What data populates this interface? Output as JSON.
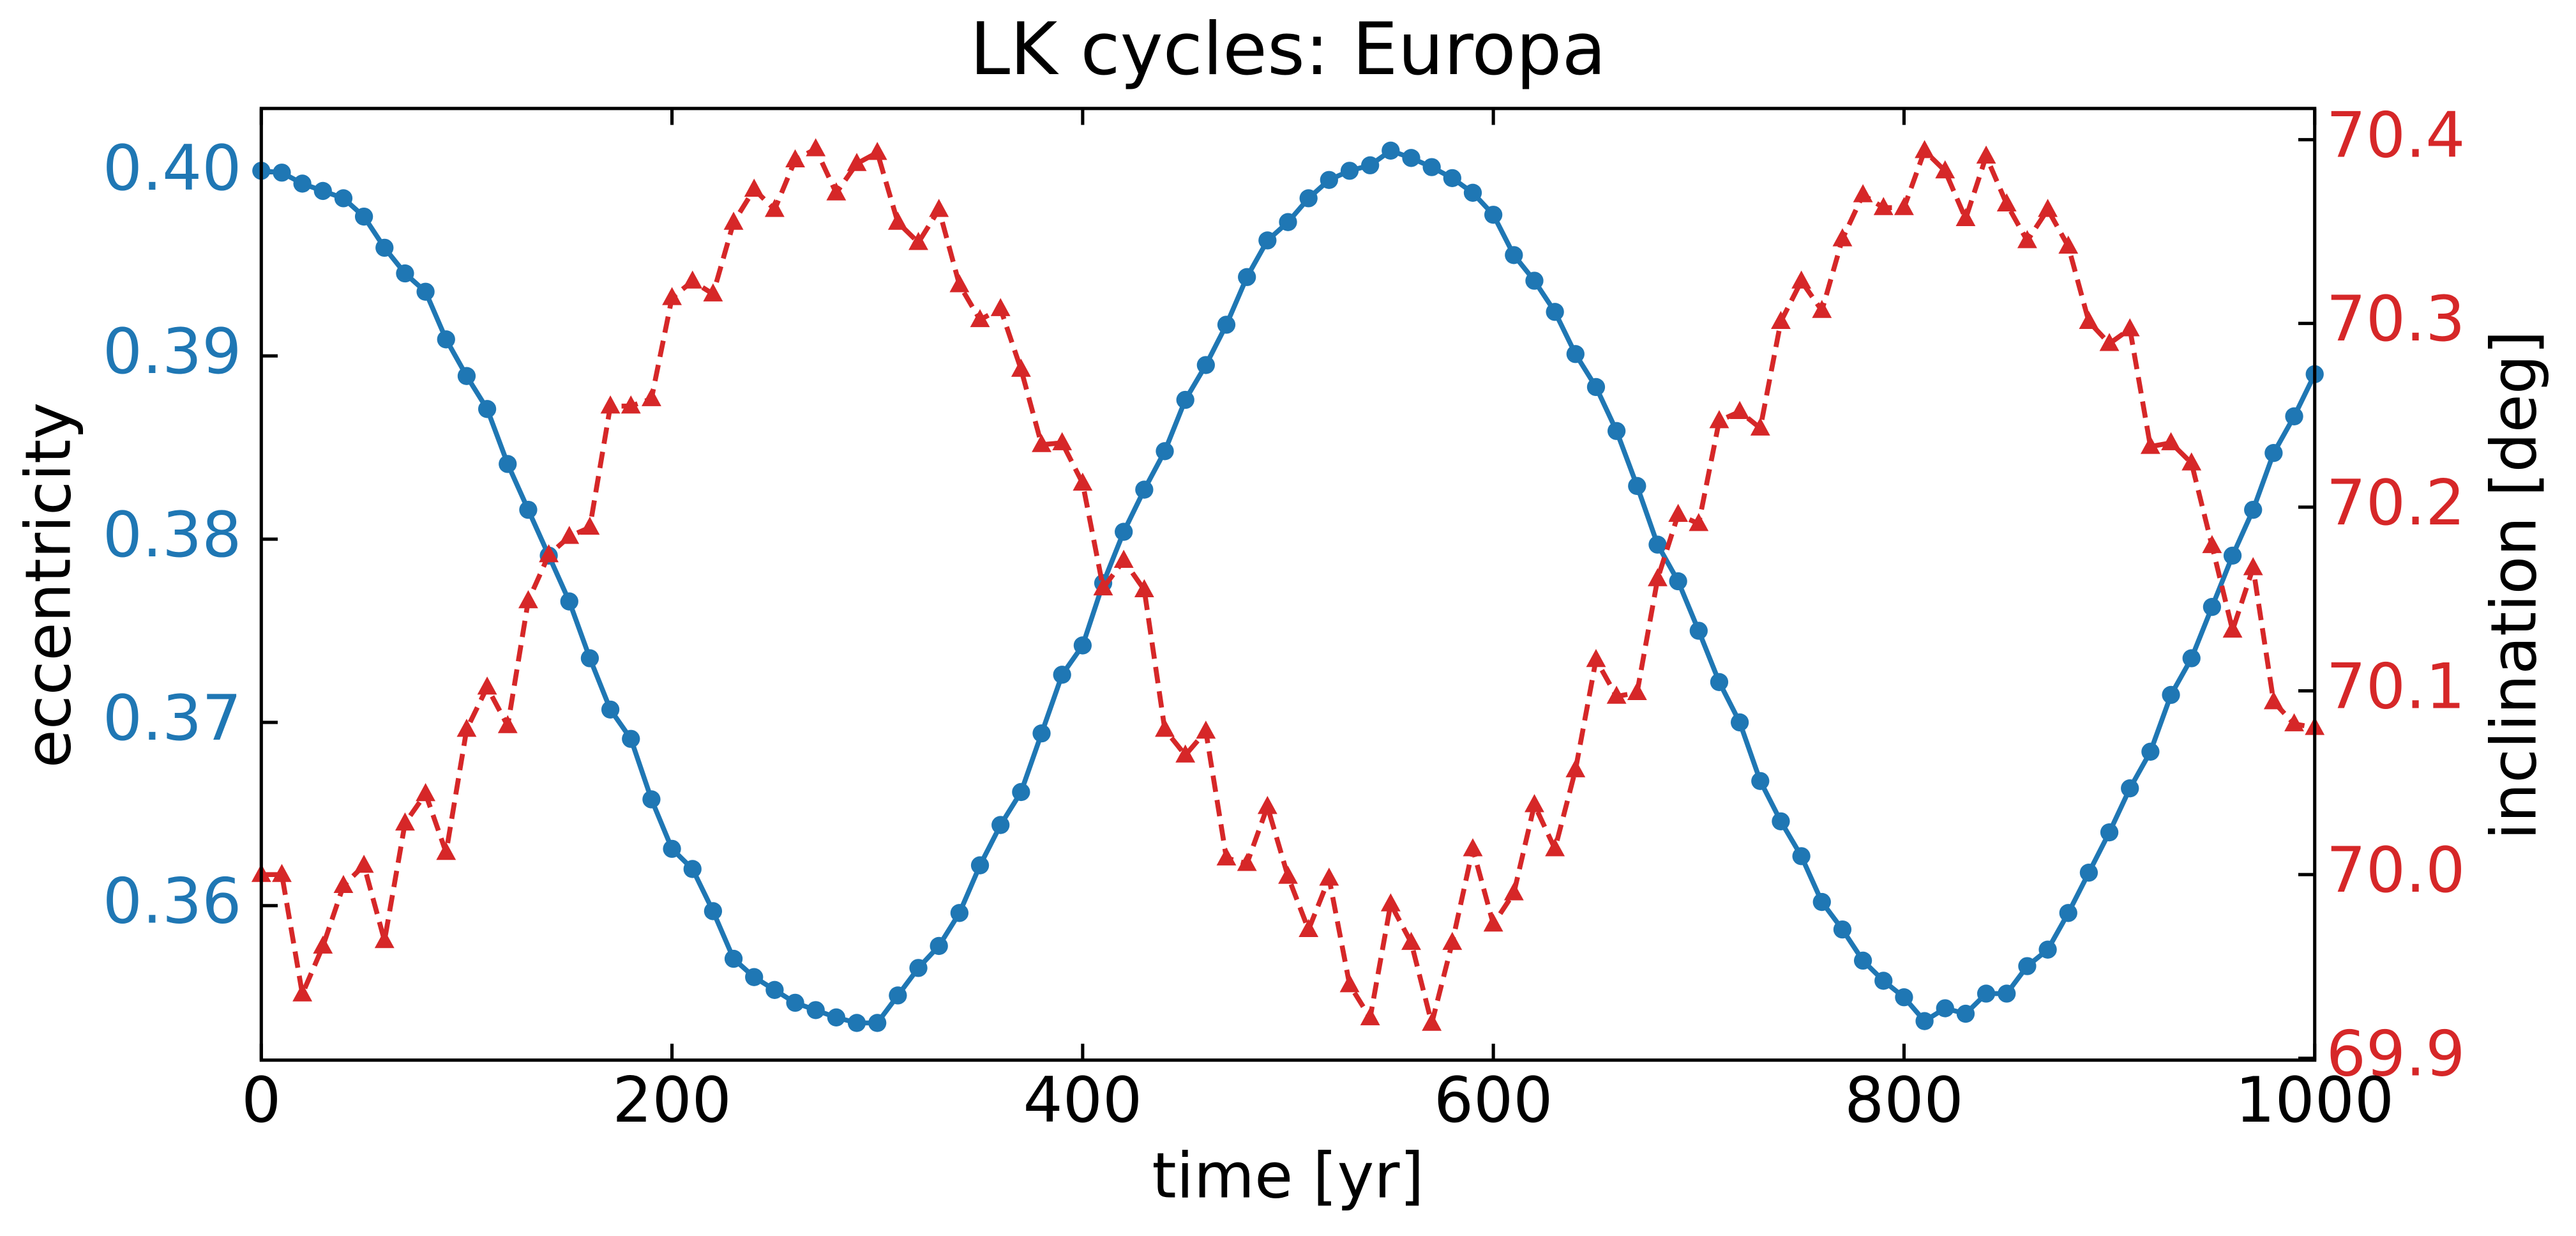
{
  "chart_data": {
    "type": "line",
    "title": "LK cycles: Europa",
    "xlabel": "time [yr]",
    "ylabel": "eccentricity",
    "y2label": "inclination [deg]",
    "x": [
      0,
      10,
      20,
      30,
      40,
      50,
      60,
      70,
      80,
      90,
      100,
      110,
      120,
      130,
      140,
      150,
      160,
      170,
      180,
      190,
      200,
      210,
      220,
      230,
      240,
      250,
      260,
      270,
      280,
      290,
      300,
      310,
      320,
      330,
      340,
      350,
      360,
      370,
      380,
      390,
      400,
      410,
      420,
      430,
      440,
      450,
      460,
      470,
      480,
      490,
      500,
      510,
      520,
      530,
      540,
      550,
      560,
      570,
      580,
      590,
      600,
      610,
      620,
      630,
      640,
      650,
      660,
      670,
      680,
      690,
      700,
      710,
      720,
      730,
      740,
      750,
      760,
      770,
      780,
      790,
      800,
      810,
      820,
      830,
      840,
      850,
      860,
      870,
      880,
      890,
      900,
      910,
      920,
      930,
      940,
      950,
      960,
      970,
      980,
      990,
      1000
    ],
    "series": [
      {
        "color": "#1f77b4",
        "axis": "y",
        "values": [
          0.4001,
          0.4,
          0.3994,
          0.399,
          0.3986,
          0.3976,
          0.3959,
          0.3945,
          0.3935,
          0.3909,
          0.3889,
          0.3871,
          0.3841,
          0.3816,
          0.3791,
          0.3766,
          0.3735,
          0.3707,
          0.3691,
          0.3658,
          0.3631,
          0.362,
          0.3597,
          0.3571,
          0.3561,
          0.3554,
          0.3547,
          0.3543,
          0.3539,
          0.3536,
          0.3536,
          0.3551,
          0.3566,
          0.3578,
          0.3596,
          0.3622,
          0.3644,
          0.3662,
          0.3694,
          0.3726,
          0.3742,
          0.3776,
          0.3804,
          0.3827,
          0.3848,
          0.3876,
          0.3895,
          0.3917,
          0.3943,
          0.3963,
          0.3973,
          0.3986,
          0.3996,
          0.4001,
          0.4004,
          0.4012,
          0.4008,
          0.4003,
          0.3997,
          0.3989,
          0.3977,
          0.3955,
          0.3941,
          0.3924,
          0.3901,
          0.3883,
          0.3859,
          0.3829,
          0.3797,
          0.3777,
          0.375,
          0.3722,
          0.37,
          0.3668,
          0.3646,
          0.3627,
          0.3602,
          0.3587,
          0.357,
          0.3559,
          0.355,
          0.3537,
          0.3544,
          0.3541,
          0.3552,
          0.3552,
          0.3567,
          0.3576,
          0.3596,
          0.3618,
          0.364,
          0.3664,
          0.3684,
          0.3715,
          0.3735,
          0.3763,
          0.3791,
          0.3816,
          0.3847,
          0.3867,
          0.389
        ]
      },
      {
        "color": "#d62728",
        "axis": "y2",
        "values": [
          70.0,
          70.0,
          69.935,
          69.961,
          69.994,
          70.005,
          69.964,
          70.028,
          70.044,
          70.012,
          70.079,
          70.102,
          70.081,
          70.149,
          70.174,
          70.184,
          70.189,
          70.255,
          70.255,
          70.259,
          70.314,
          70.323,
          70.316,
          70.355,
          70.373,
          70.362,
          70.389,
          70.395,
          70.371,
          70.387,
          70.393,
          70.355,
          70.344,
          70.362,
          70.321,
          70.302,
          70.308,
          70.275,
          70.234,
          70.235,
          70.213,
          70.156,
          70.171,
          70.155,
          70.079,
          70.065,
          70.078,
          70.009,
          70.006,
          70.037,
          69.999,
          69.97,
          69.998,
          69.94,
          69.922,
          69.984,
          69.963,
          69.919,
          69.963,
          70.014,
          69.973,
          69.99,
          70.038,
          70.014,
          70.057,
          70.117,
          70.097,
          70.099,
          70.161,
          70.196,
          70.191,
          70.247,
          70.252,
          70.243,
          70.301,
          70.323,
          70.307,
          70.346,
          70.37,
          70.363,
          70.363,
          70.394,
          70.383,
          70.357,
          70.391,
          70.365,
          70.345,
          70.362,
          70.342,
          70.301,
          70.289,
          70.297,
          70.233,
          70.235,
          70.224,
          70.179,
          70.133,
          70.167,
          70.094,
          70.082,
          70.08
        ]
      }
    ],
    "xlim": [
      0,
      1000
    ],
    "xticks": [
      0,
      200,
      400,
      600,
      800,
      1000
    ],
    "ylim": [
      0.35157,
      0.4035
    ],
    "yticks": [
      0.36,
      0.37,
      0.38,
      0.39,
      {
        "value": 0.4,
        "label": "0.40"
      }
    ],
    "y2lim": [
      69.899,
      70.417
    ],
    "y2ticks": [
      69.9,
      {
        "value": 70,
        "label": "70.0"
      },
      70.1,
      70.2,
      70.3,
      70.4
    ],
    "grid": false
  }
}
